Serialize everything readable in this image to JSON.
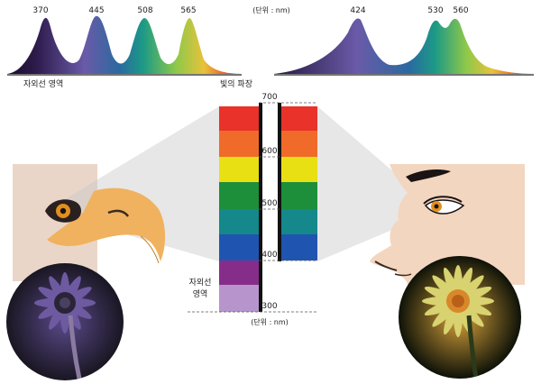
{
  "bird_spectrum": {
    "peaks": [
      "370",
      "445",
      "508",
      "565"
    ],
    "unit_label": "(단위 : nm)",
    "uv_label": "자외선 영역",
    "wavelength_label": "빛의 파장"
  },
  "human_spectrum": {
    "peaks": [
      "424",
      "530",
      "560"
    ]
  },
  "scale": {
    "ticks": [
      "700",
      "600",
      "500",
      "400",
      "300"
    ],
    "uv_label_line1": "자외선",
    "uv_label_line2": "영역",
    "unit_label": "(단위 : nm)"
  },
  "bands": {
    "colors": [
      "#e8322a",
      "#f06a2a",
      "#e8e012",
      "#1d8f3a",
      "#14888a",
      "#1f55b0",
      "#862d8a",
      "#b894cc"
    ]
  },
  "colors": {
    "bird_face": "#ead6c8",
    "beak": "#f0b25e",
    "human_skin": "#f3d6c0",
    "eye_iris": "#e0901c"
  }
}
